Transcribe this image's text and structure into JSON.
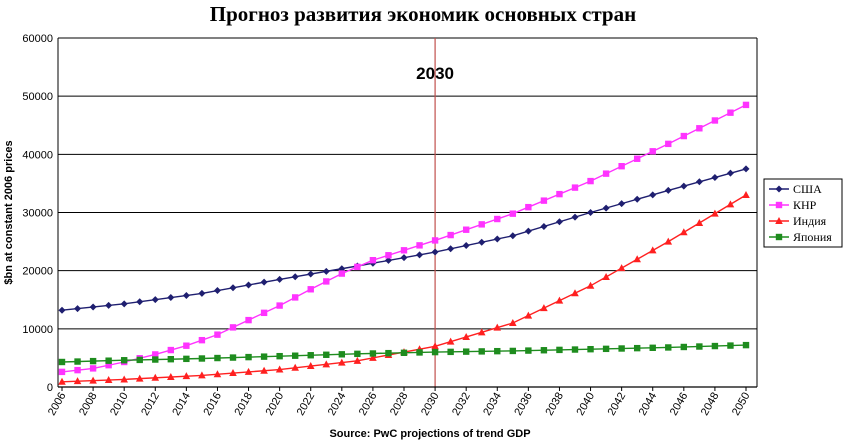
{
  "title": "Прогноз развития экономик основных стран",
  "chart_data": {
    "type": "line",
    "title": "Прогноз развития экономик основных стран",
    "xlabel": "Source: PwC projections of trend GDP",
    "ylabel": "$bn at constant 2006 prices",
    "xlim": [
      2006,
      2050
    ],
    "ylim": [
      0,
      60000
    ],
    "yticks": [
      0,
      10000,
      20000,
      30000,
      40000,
      50000,
      60000
    ],
    "xticks": [
      2006,
      2008,
      2010,
      2012,
      2014,
      2016,
      2018,
      2020,
      2022,
      2024,
      2026,
      2028,
      2030,
      2032,
      2034,
      2036,
      2038,
      2040,
      2042,
      2044,
      2046,
      2048,
      2050
    ],
    "grid": "horizontal",
    "legend_position": "right",
    "annotation": {
      "x": 2030,
      "label": "2030",
      "color": "#c0504d"
    },
    "series": [
      {
        "name": "США",
        "color": "#1f1f70",
        "marker": "diamond",
        "points": [
          [
            2006,
            13200
          ],
          [
            2010,
            14300
          ],
          [
            2015,
            16100
          ],
          [
            2020,
            18500
          ],
          [
            2025,
            20800
          ],
          [
            2030,
            23200
          ],
          [
            2035,
            26000
          ],
          [
            2040,
            30000
          ],
          [
            2045,
            33800
          ],
          [
            2050,
            37500
          ]
        ]
      },
      {
        "name": "КНР",
        "color": "#ff33ff",
        "marker": "square",
        "points": [
          [
            2006,
            2600
          ],
          [
            2008,
            3200
          ],
          [
            2010,
            4300
          ],
          [
            2012,
            5600
          ],
          [
            2014,
            7100
          ],
          [
            2016,
            9000
          ],
          [
            2018,
            11500
          ],
          [
            2020,
            14000
          ],
          [
            2022,
            16800
          ],
          [
            2024,
            19500
          ],
          [
            2026,
            21800
          ],
          [
            2028,
            23500
          ],
          [
            2030,
            25200
          ],
          [
            2035,
            29800
          ],
          [
            2040,
            35400
          ],
          [
            2045,
            41800
          ],
          [
            2050,
            48500
          ]
        ]
      },
      {
        "name": "Индия",
        "color": "#ff2020",
        "marker": "triangle",
        "points": [
          [
            2006,
            900
          ],
          [
            2010,
            1300
          ],
          [
            2015,
            2000
          ],
          [
            2020,
            3000
          ],
          [
            2025,
            4500
          ],
          [
            2030,
            7000
          ],
          [
            2035,
            11000
          ],
          [
            2040,
            17400
          ],
          [
            2045,
            25000
          ],
          [
            2050,
            33000
          ]
        ]
      },
      {
        "name": "Япония",
        "color": "#1e8c1e",
        "marker": "square",
        "points": [
          [
            2006,
            4300
          ],
          [
            2010,
            4600
          ],
          [
            2015,
            4900
          ],
          [
            2020,
            5300
          ],
          [
            2025,
            5700
          ],
          [
            2030,
            6000
          ],
          [
            2035,
            6200
          ],
          [
            2040,
            6500
          ],
          [
            2045,
            6800
          ],
          [
            2050,
            7200
          ]
        ]
      }
    ]
  }
}
